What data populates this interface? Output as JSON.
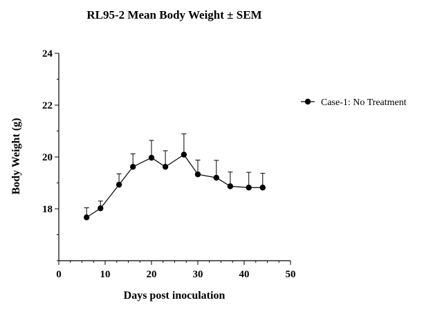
{
  "chart_data": {
    "type": "line",
    "title": "RL95-2 Mean Body Weight ± SEM",
    "xlabel": "Days post inoculation",
    "ylabel": "Body Weight (g)",
    "xlim": [
      0,
      50
    ],
    "ylim": [
      16,
      24
    ],
    "xticks": [
      0,
      10,
      20,
      30,
      40,
      50
    ],
    "yticks": [
      18,
      20,
      22,
      24
    ],
    "grid": false,
    "legend_position": "right",
    "series": [
      {
        "name": "Case-1: No Treatment",
        "color": "#000000",
        "marker": "circle",
        "x": [
          6,
          9,
          13,
          16,
          20,
          23,
          27,
          30,
          34,
          37,
          41,
          44
        ],
        "y": [
          17.67,
          18.02,
          18.93,
          19.62,
          19.97,
          19.62,
          20.09,
          19.33,
          19.2,
          18.87,
          18.82,
          18.82
        ],
        "sem": [
          0.37,
          0.28,
          0.42,
          0.5,
          0.67,
          0.62,
          0.8,
          0.55,
          0.67,
          0.55,
          0.59,
          0.55
        ]
      }
    ]
  }
}
